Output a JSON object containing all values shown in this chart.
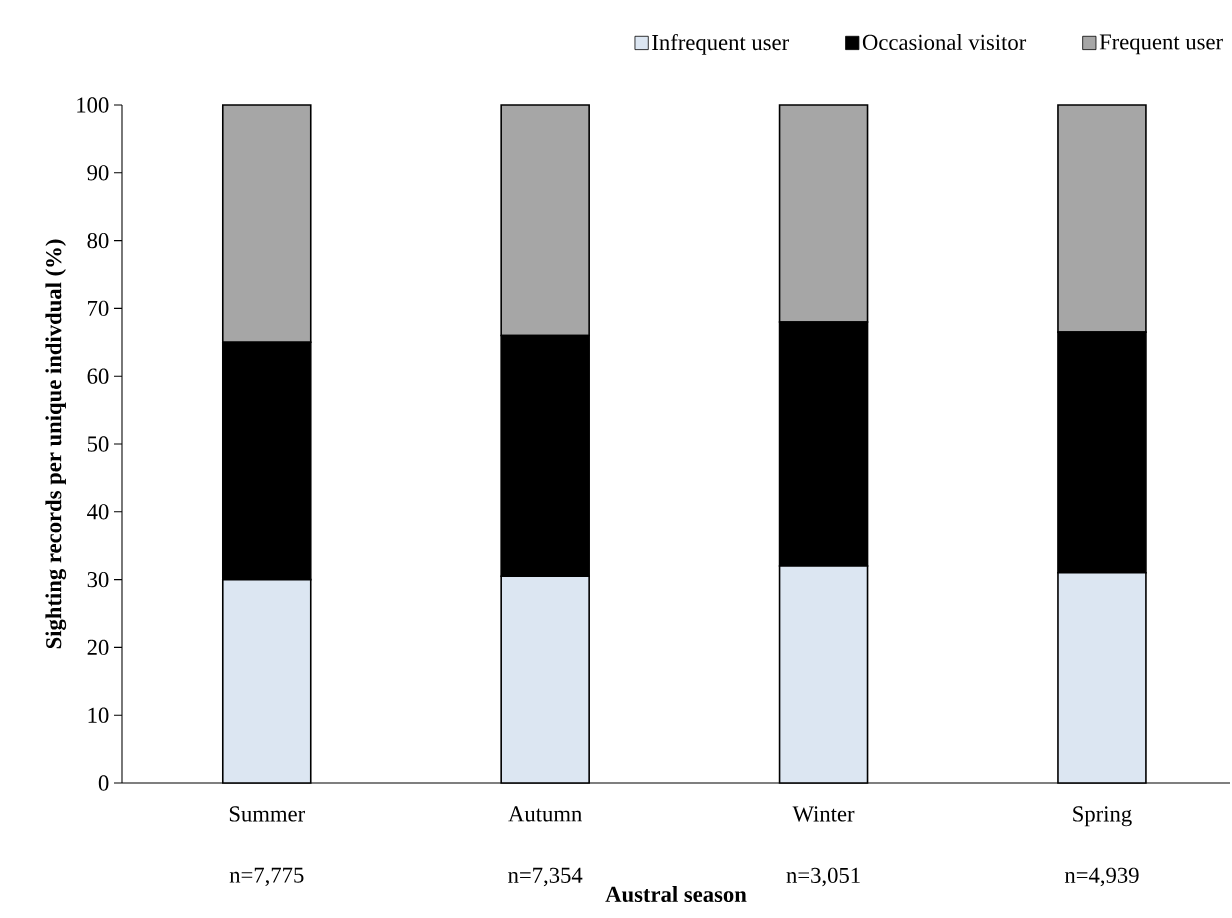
{
  "chart_data": {
    "type": "bar",
    "stacked": true,
    "xlabel": "Austral season",
    "ylabel": "Sighting records per unique indivdual (%)",
    "categories": [
      "Summer",
      "Autumn",
      "Winter",
      "Spring"
    ],
    "annotations": [
      "n=7,775",
      "n=7,354",
      "n=3,051",
      "n=4,939"
    ],
    "series": [
      {
        "name": "Infrequent user",
        "color": "#dce6f2",
        "values": [
          30,
          30.5,
          32,
          31
        ]
      },
      {
        "name": "Occasional visitor",
        "color": "#000000",
        "values": [
          35,
          35.5,
          36,
          35.5
        ]
      },
      {
        "name": "Frequent user",
        "color": "#a6a6a6",
        "values": [
          35,
          34,
          32,
          33.5
        ]
      }
    ],
    "ylim": [
      0,
      100
    ],
    "yticks": [
      0,
      10,
      20,
      30,
      40,
      50,
      60,
      70,
      80,
      90,
      100
    ],
    "grid": false,
    "legend": "top"
  }
}
